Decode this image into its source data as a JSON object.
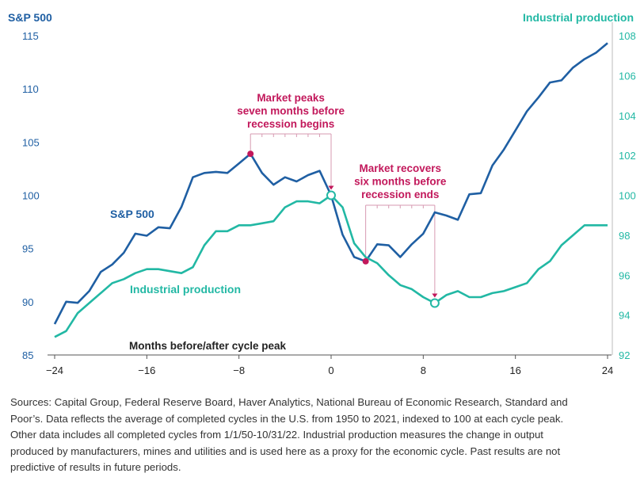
{
  "chart_data": {
    "type": "line",
    "xlabel": "Months before/after cycle peak",
    "x_ticks": [
      "-24",
      "-16",
      "-8",
      "0",
      "8",
      "16",
      "24"
    ],
    "xlim": [
      -24,
      24
    ],
    "y_left": {
      "title": "S&P 500",
      "ticks": [
        "115",
        "110",
        "105",
        "100",
        "95",
        "90",
        "85"
      ],
      "ylim": [
        85,
        115
      ]
    },
    "y_right": {
      "title": "Industrial production",
      "ticks": [
        "108",
        "106",
        "104",
        "102",
        "100",
        "98",
        "96",
        "94",
        "92"
      ],
      "ylim": [
        92,
        108
      ]
    },
    "series": [
      {
        "name": "S&P 500",
        "axis": "left",
        "color": "#1f5fa3",
        "x": [
          -24,
          -23,
          -22,
          -21,
          -20,
          -19,
          -18,
          -17,
          -16,
          -15,
          -14,
          -13,
          -12,
          -11,
          -10,
          -9,
          -8,
          -7,
          -6,
          -5,
          -4,
          -3,
          -2,
          -1,
          0,
          1,
          2,
          3,
          4,
          5,
          6,
          7,
          8,
          9,
          10,
          11,
          12,
          13,
          14,
          15,
          16,
          17,
          18,
          19,
          20,
          21,
          22,
          23,
          24
        ],
        "values": [
          87.9,
          90.0,
          89.9,
          91.0,
          92.8,
          93.5,
          94.6,
          96.4,
          96.2,
          97.0,
          96.9,
          98.9,
          101.7,
          102.1,
          102.2,
          102.1,
          103.0,
          103.9,
          102.1,
          101.0,
          101.7,
          101.3,
          101.9,
          102.3,
          100.0,
          96.3,
          94.2,
          93.8,
          95.4,
          95.3,
          94.2,
          95.4,
          96.4,
          98.4,
          98.1,
          97.7,
          100.1,
          100.2,
          102.8,
          104.3,
          106.1,
          107.9,
          109.2,
          110.6,
          110.8,
          112.0,
          112.8,
          113.4,
          114.3
        ]
      },
      {
        "name": "Industrial production",
        "axis": "right",
        "color": "#22b8a4",
        "x": [
          -24,
          -23,
          -22,
          -21,
          -20,
          -19,
          -18,
          -17,
          -16,
          -15,
          -14,
          -13,
          -12,
          -11,
          -10,
          -9,
          -8,
          -7,
          -6,
          -5,
          -4,
          -3,
          -2,
          -1,
          0,
          1,
          2,
          3,
          4,
          5,
          6,
          7,
          8,
          9,
          10,
          11,
          12,
          13,
          14,
          15,
          16,
          17,
          18,
          19,
          20,
          21,
          22,
          23,
          24
        ],
        "values": [
          92.9,
          93.2,
          94.1,
          94.6,
          95.1,
          95.6,
          95.8,
          96.1,
          96.3,
          96.3,
          96.2,
          96.1,
          96.4,
          97.5,
          98.2,
          98.2,
          98.5,
          98.5,
          98.6,
          98.7,
          99.4,
          99.7,
          99.7,
          99.6,
          100.0,
          99.4,
          97.6,
          96.9,
          96.6,
          96.0,
          95.5,
          95.3,
          94.9,
          94.6,
          95.0,
          95.2,
          94.9,
          94.9,
          95.1,
          95.2,
          95.4,
          95.6,
          96.3,
          96.7,
          97.5,
          98.0,
          98.5,
          98.5,
          98.5
        ]
      }
    ],
    "annotations": [
      {
        "text": [
          "Market peaks",
          "seven months before",
          "recession begins"
        ],
        "from_month": -7,
        "to_month": 0,
        "color": "#c2185b"
      },
      {
        "text": [
          "Market recovers",
          "six months before",
          "recession ends"
        ],
        "from_month": 3,
        "to_month": 9,
        "color": "#c2185b"
      }
    ],
    "series_labels": [
      {
        "text": "S&P 500",
        "color": "#1f5fa3"
      },
      {
        "text": "Industrial production",
        "color": "#22b8a4"
      }
    ],
    "grid": false
  },
  "source_lines": [
    "Sources: Capital Group, Federal Reserve Board, Haver Analytics, National Bureau of Economic Research, Standard and",
    "Poor’s. Data reflects the average of completed cycles in the U.S. from 1950 to 2021, indexed to 100 at each cycle peak.",
    "Other data includes all completed cycles from 1/1/50-10/31/22. Industrial production measures the change in output",
    "produced by manufacturers, mines and utilities and is used here as a proxy for the economic cycle. Past results are not",
    "predictive of results in future periods."
  ]
}
